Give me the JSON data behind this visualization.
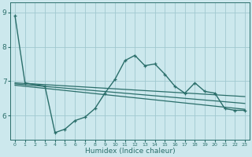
{
  "xlabel": "Humidex (Indice chaleur)",
  "bg_color": "#cce8ed",
  "grid_color": "#a0c8d0",
  "line_color": "#2a6e6a",
  "xlim": [
    -0.5,
    23.5
  ],
  "ylim": [
    5.3,
    9.3
  ],
  "xticks": [
    0,
    1,
    2,
    3,
    4,
    5,
    6,
    7,
    8,
    9,
    10,
    11,
    12,
    13,
    14,
    15,
    16,
    17,
    18,
    19,
    20,
    21,
    22,
    23
  ],
  "yticks": [
    6,
    7,
    8,
    9
  ],
  "series": [
    {
      "x": [
        0,
        1,
        3,
        4,
        5,
        6,
        7,
        8,
        9,
        10,
        11,
        12,
        13,
        14,
        15,
        16,
        17,
        18,
        19,
        20,
        21,
        22,
        23
      ],
      "y": [
        8.9,
        6.95,
        6.85,
        5.5,
        5.6,
        5.85,
        5.95,
        6.2,
        6.65,
        7.05,
        7.6,
        7.75,
        7.45,
        7.5,
        7.2,
        6.85,
        6.65,
        6.95,
        6.7,
        6.65,
        6.2,
        6.15,
        6.15
      ],
      "has_markers": true,
      "lw": 1.0
    },
    {
      "x": [
        0,
        23
      ],
      "y": [
        6.95,
        6.55
      ],
      "has_markers": false,
      "lw": 0.9
    },
    {
      "x": [
        0,
        23
      ],
      "y": [
        6.92,
        6.35
      ],
      "has_markers": false,
      "lw": 0.9
    },
    {
      "x": [
        0,
        23
      ],
      "y": [
        6.88,
        6.18
      ],
      "has_markers": false,
      "lw": 0.9
    }
  ]
}
